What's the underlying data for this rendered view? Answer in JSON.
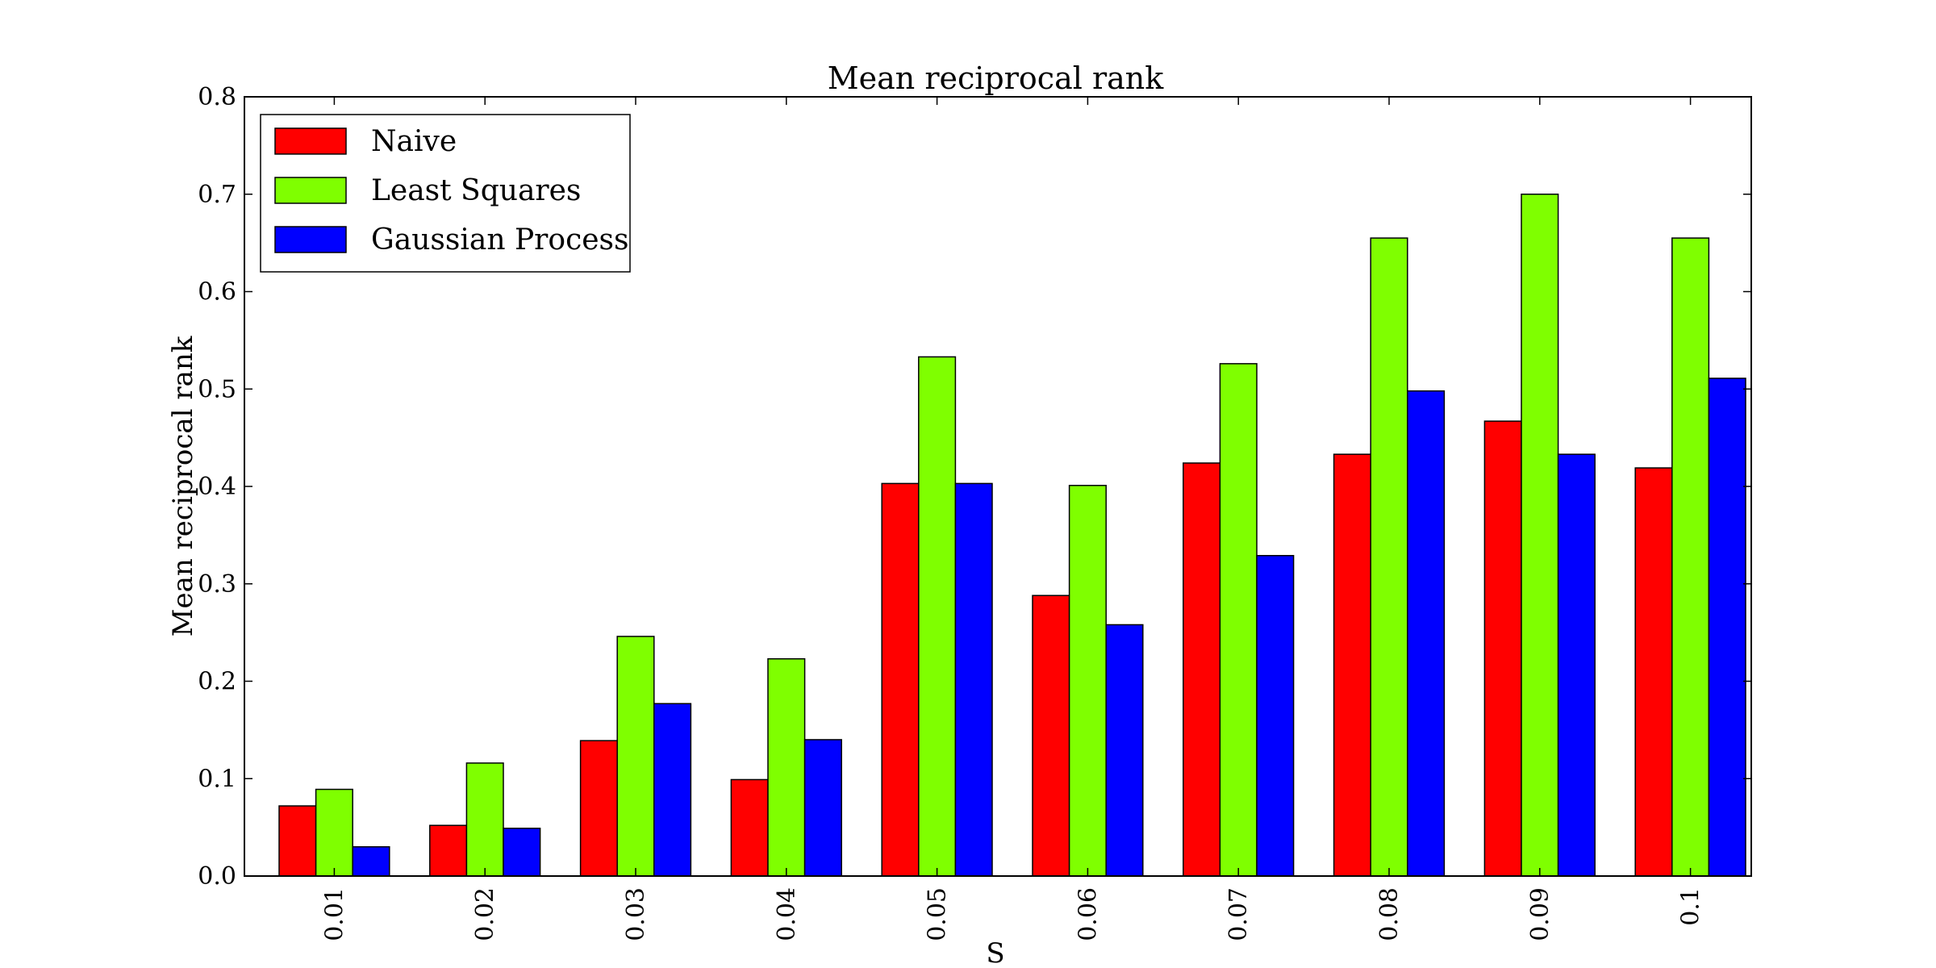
{
  "chart_data": {
    "type": "bar",
    "title": "Mean reciprocal rank",
    "xlabel": "S",
    "ylabel": "Mean reciprocal rank",
    "ylim": [
      0,
      0.8
    ],
    "yticks": [
      "0.0",
      "0.1",
      "0.2",
      "0.3",
      "0.4",
      "0.5",
      "0.6",
      "0.7",
      "0.8"
    ],
    "categories": [
      "0.01",
      "0.02",
      "0.03",
      "0.04",
      "0.05",
      "0.06",
      "0.07",
      "0.08",
      "0.09",
      "0.1"
    ],
    "grid": false,
    "legend_position": "top-left",
    "series": [
      {
        "name": "Naive",
        "color": "#ff0000",
        "values": [
          0.072,
          0.052,
          0.139,
          0.099,
          0.403,
          0.288,
          0.424,
          0.433,
          0.467,
          0.419
        ]
      },
      {
        "name": "Least Squares",
        "color": "#7fff00",
        "values": [
          0.089,
          0.116,
          0.246,
          0.223,
          0.533,
          0.401,
          0.526,
          0.655,
          0.7,
          0.655
        ]
      },
      {
        "name": "Gaussian Process",
        "color": "#0000ff",
        "values": [
          0.03,
          0.049,
          0.177,
          0.14,
          0.403,
          0.258,
          0.329,
          0.498,
          0.433,
          0.511
        ]
      }
    ]
  }
}
